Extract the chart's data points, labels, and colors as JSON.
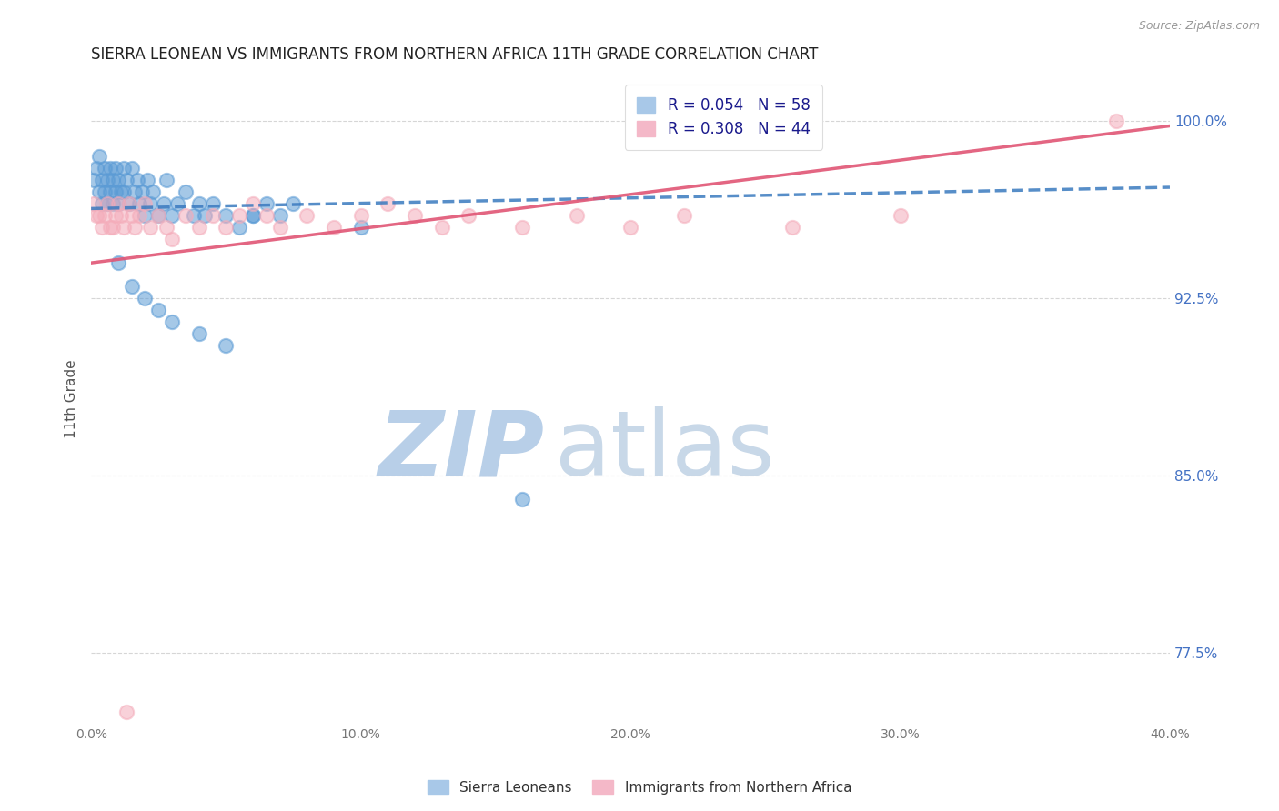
{
  "title": "SIERRA LEONEAN VS IMMIGRANTS FROM NORTHERN AFRICA 11TH GRADE CORRELATION CHART",
  "source_text": "Source: ZipAtlas.com",
  "ylabel": "11th Grade",
  "xmin": 0.0,
  "xmax": 0.4,
  "ymin": 0.745,
  "ymax": 1.02,
  "yticks": [
    0.775,
    0.85,
    0.925,
    1.0
  ],
  "ytick_labels": [
    "77.5%",
    "85.0%",
    "92.5%",
    "100.0%"
  ],
  "xticks": [
    0.0,
    0.1,
    0.2,
    0.3,
    0.4
  ],
  "xtick_labels": [
    "0.0%",
    "10.0%",
    "20.0%",
    "30.0%",
    "40.0%"
  ],
  "blue_scatter_x": [
    0.001,
    0.002,
    0.003,
    0.003,
    0.004,
    0.004,
    0.005,
    0.005,
    0.006,
    0.006,
    0.007,
    0.007,
    0.008,
    0.008,
    0.009,
    0.009,
    0.01,
    0.01,
    0.011,
    0.012,
    0.012,
    0.013,
    0.014,
    0.015,
    0.016,
    0.017,
    0.018,
    0.019,
    0.02,
    0.021,
    0.022,
    0.023,
    0.025,
    0.027,
    0.028,
    0.03,
    0.032,
    0.035,
    0.038,
    0.04,
    0.042,
    0.045,
    0.05,
    0.055,
    0.06,
    0.065,
    0.07,
    0.075,
    0.01,
    0.015,
    0.02,
    0.025,
    0.03,
    0.04,
    0.05,
    0.06,
    0.1,
    0.16
  ],
  "blue_scatter_y": [
    0.975,
    0.98,
    0.985,
    0.97,
    0.975,
    0.965,
    0.98,
    0.97,
    0.975,
    0.965,
    0.98,
    0.97,
    0.975,
    0.965,
    0.98,
    0.97,
    0.975,
    0.965,
    0.97,
    0.98,
    0.97,
    0.975,
    0.965,
    0.98,
    0.97,
    0.975,
    0.965,
    0.97,
    0.96,
    0.975,
    0.965,
    0.97,
    0.96,
    0.965,
    0.975,
    0.96,
    0.965,
    0.97,
    0.96,
    0.965,
    0.96,
    0.965,
    0.96,
    0.955,
    0.96,
    0.965,
    0.96,
    0.965,
    0.94,
    0.93,
    0.925,
    0.92,
    0.915,
    0.91,
    0.905,
    0.96,
    0.955,
    0.84
  ],
  "pink_scatter_x": [
    0.001,
    0.003,
    0.004,
    0.005,
    0.006,
    0.008,
    0.009,
    0.01,
    0.011,
    0.012,
    0.014,
    0.015,
    0.016,
    0.018,
    0.02,
    0.022,
    0.025,
    0.028,
    0.03,
    0.035,
    0.04,
    0.045,
    0.05,
    0.055,
    0.06,
    0.065,
    0.07,
    0.08,
    0.09,
    0.1,
    0.11,
    0.12,
    0.13,
    0.14,
    0.16,
    0.18,
    0.2,
    0.22,
    0.26,
    0.3,
    0.38,
    0.002,
    0.007,
    0.013
  ],
  "pink_scatter_y": [
    0.965,
    0.96,
    0.955,
    0.96,
    0.965,
    0.955,
    0.96,
    0.965,
    0.96,
    0.955,
    0.965,
    0.96,
    0.955,
    0.96,
    0.965,
    0.955,
    0.96,
    0.955,
    0.95,
    0.96,
    0.955,
    0.96,
    0.955,
    0.96,
    0.965,
    0.96,
    0.955,
    0.96,
    0.955,
    0.96,
    0.965,
    0.96,
    0.955,
    0.96,
    0.955,
    0.96,
    0.955,
    0.96,
    0.955,
    0.96,
    1.0,
    0.96,
    0.955,
    0.75
  ],
  "blue_line_x": [
    0.0,
    0.4
  ],
  "blue_line_y": [
    0.963,
    0.972
  ],
  "pink_line_x": [
    0.0,
    0.4
  ],
  "pink_line_y": [
    0.94,
    0.998
  ],
  "blue_color": "#5b9bd5",
  "pink_color": "#f4acba",
  "blue_line_color": "#3a7abf",
  "pink_line_color": "#e05575",
  "background_color": "#ffffff",
  "title_fontsize": 12,
  "axis_label_fontsize": 11,
  "tick_fontsize": 10,
  "legend_fontsize": 12,
  "watermark_zip_color": "#b8cfe8",
  "watermark_atlas_color": "#c8d8e8",
  "watermark_fontsize": 72
}
